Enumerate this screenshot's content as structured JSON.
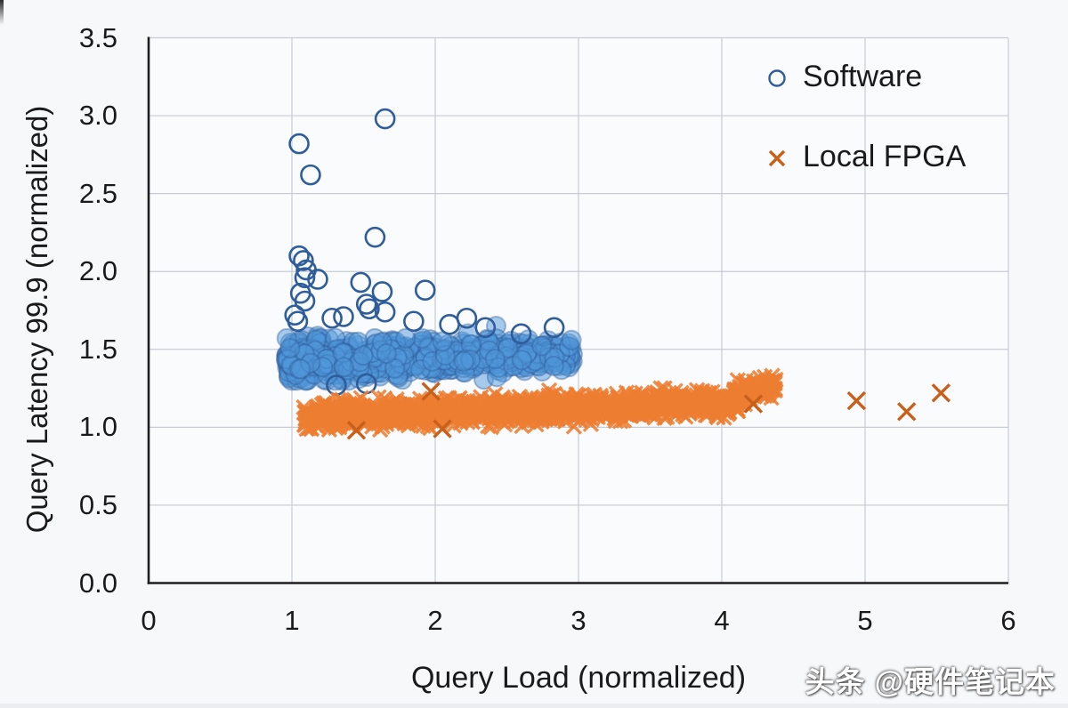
{
  "watermark": {
    "text": "头条 @硬件笔记本"
  },
  "chart_data": {
    "type": "scatter",
    "title": "",
    "xlabel": "Query Load (normalized)",
    "ylabel": "Query Latency 99.9 (normalized)",
    "xlim": [
      0,
      6
    ],
    "ylim": [
      0,
      3.5
    ],
    "xticks": [
      0,
      1,
      2,
      3,
      4,
      5,
      6
    ],
    "xtick_labels": [
      "0",
      "1",
      "2",
      "3",
      "4",
      "5",
      "6"
    ],
    "yticks": [
      0,
      0.5,
      1,
      1.5,
      2,
      2.5,
      3,
      3.5
    ],
    "ytick_labels": [
      "0.0",
      "0.5",
      "1.0",
      "1.5",
      "2.0",
      "2.5",
      "3.0",
      "3.5"
    ],
    "grid": true,
    "legend_position": "top-right",
    "style": {
      "grid_color": "#c6ccd5",
      "axis_color": "#1f1f1f",
      "text_color": "#1a1a1a",
      "plot_bg": "#fafbfd"
    },
    "series": [
      {
        "name": "Software",
        "marker": "circle",
        "stroke": "#2f5d9b",
        "fill": "#4f97da",
        "band_clusters": [
          {
            "x_min": 0.96,
            "x_max": 2.96,
            "y_center_start": 1.42,
            "y_center_end": 1.47,
            "y_sigma_start": 0.07,
            "y_sigma_end": 0.042,
            "y_min": 1.3,
            "y_max": 1.67,
            "count": 750,
            "x_pow": 1.2
          }
        ],
        "outlier_points": [
          [
            1.65,
            2.98
          ],
          [
            1.05,
            2.82
          ],
          [
            1.13,
            2.62
          ],
          [
            1.58,
            2.22
          ],
          [
            1.05,
            2.1
          ],
          [
            1.08,
            2.07
          ],
          [
            1.1,
            2.01
          ],
          [
            1.09,
            1.96
          ],
          [
            1.18,
            1.95
          ],
          [
            1.48,
            1.93
          ],
          [
            1.93,
            1.88
          ],
          [
            1.63,
            1.87
          ],
          [
            1.06,
            1.86
          ],
          [
            1.09,
            1.81
          ],
          [
            1.52,
            1.79
          ],
          [
            1.54,
            1.76
          ],
          [
            1.65,
            1.74
          ],
          [
            1.36,
            1.71
          ],
          [
            1.28,
            1.7
          ],
          [
            1.02,
            1.72
          ],
          [
            1.04,
            1.68
          ],
          [
            1.85,
            1.68
          ],
          [
            2.1,
            1.66
          ],
          [
            2.22,
            1.7
          ],
          [
            2.83,
            1.64
          ],
          [
            2.35,
            1.64
          ],
          [
            2.6,
            1.6
          ],
          [
            1.31,
            1.27
          ],
          [
            1.52,
            1.28
          ]
        ]
      },
      {
        "name": "Local FPGA",
        "marker": "x",
        "stroke": "#ed7d31",
        "stroke_isolated": "#c9601a",
        "band_clusters": [
          {
            "x_min": 1.08,
            "x_max": 4.12,
            "y_center_start": 1.07,
            "y_center_end": 1.16,
            "y_sigma_start": 0.038,
            "y_sigma_end": 0.04,
            "y_min": 0.985,
            "y_max": 1.25,
            "count": 1500,
            "x_pow": 1.0
          },
          {
            "x_min": 4.08,
            "x_max": 4.38,
            "y_center_start": 1.22,
            "y_center_end": 1.27,
            "y_sigma_start": 0.035,
            "y_sigma_end": 0.035,
            "y_min": 1.12,
            "y_max": 1.33,
            "count": 120,
            "x_pow": 1.0
          }
        ],
        "outlier_points": [
          [
            1.97,
            1.23
          ],
          [
            4.22,
            1.15
          ],
          [
            4.94,
            1.17
          ],
          [
            5.29,
            1.1
          ],
          [
            5.53,
            1.22
          ],
          [
            1.45,
            0.98
          ],
          [
            2.05,
            0.99
          ]
        ]
      }
    ]
  }
}
